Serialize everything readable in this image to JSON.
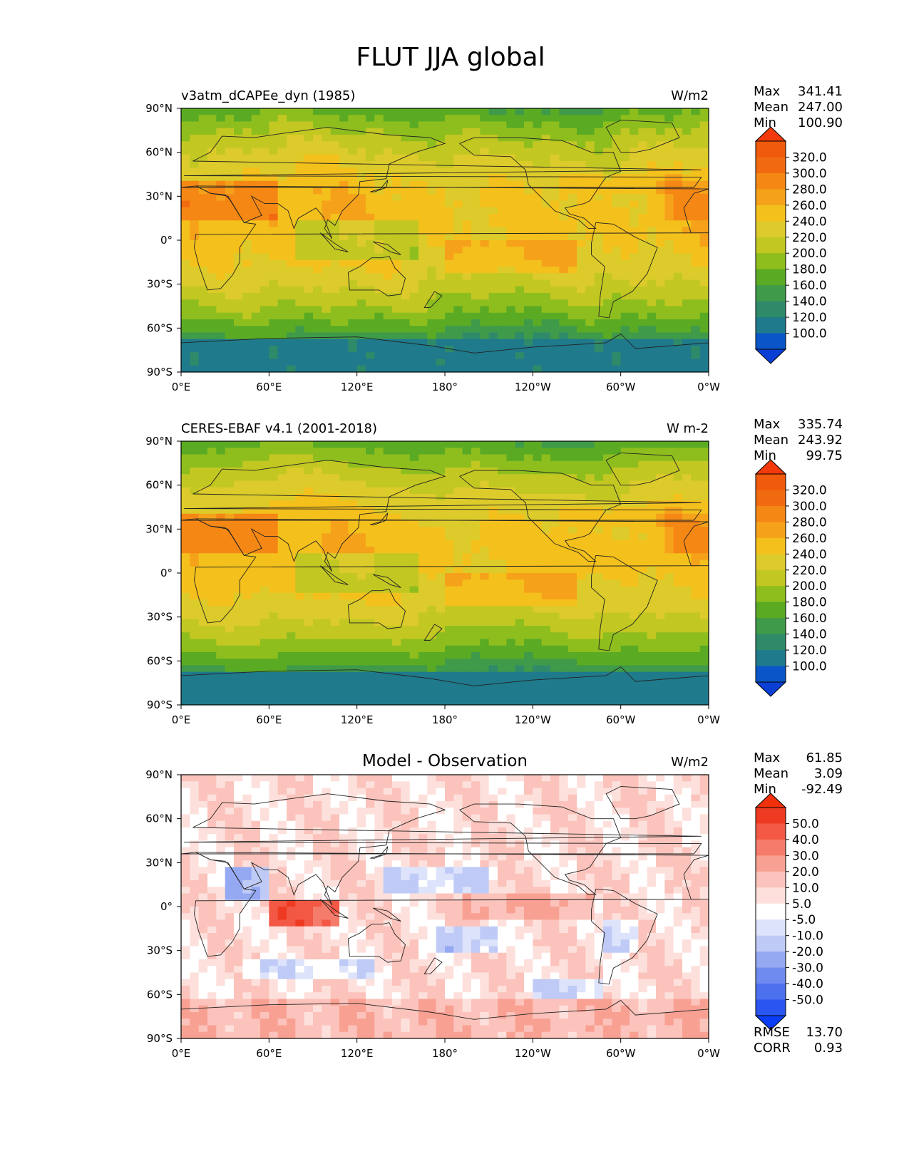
{
  "title": "FLUT JJA global",
  "chart_data": [
    {
      "type": "heatmap",
      "title": "v3atm_dCAPEe_dyn (1985)",
      "units": "W/m2",
      "variant": "model",
      "stats": [
        {
          "label": "Max",
          "value": "341.41"
        },
        {
          "label": "Mean",
          "value": "247.00"
        },
        {
          "label": "Min",
          "value": "100.90"
        }
      ],
      "colorbar": {
        "levels": [
          90,
          100,
          120,
          140,
          160,
          180,
          200,
          220,
          240,
          260,
          280,
          300,
          320,
          350
        ],
        "colors": [
          "#0a56c8",
          "#1f7a8c",
          "#2f8a6a",
          "#3f9a4a",
          "#5aab23",
          "#8ebe1e",
          "#c2c722",
          "#dccb2a",
          "#f4c01c",
          "#f5a21a",
          "#f58714",
          "#f26a10",
          "#ef5a0c"
        ],
        "tick_labels": [
          "100.0",
          "120.0",
          "140.0",
          "160.0",
          "180.0",
          "200.0",
          "220.0",
          "240.0",
          "260.0",
          "280.0",
          "300.0",
          "320.0"
        ],
        "under_color": "#0a3fd6",
        "over_color": "#f23a0c"
      },
      "x_ticks": [
        "0°E",
        "60°E",
        "120°E",
        "180°",
        "120°W",
        "60°W",
        "0°W"
      ],
      "y_ticks": [
        "90°N",
        "60°N",
        "30°N",
        "0°",
        "30°S",
        "60°S",
        "90°S"
      ],
      "xlim": [
        0,
        360
      ],
      "ylim": [
        -90,
        90
      ],
      "value_range": [
        100.9,
        341.41
      ]
    },
    {
      "type": "heatmap",
      "title": "CERES-EBAF v4.1 (2001-2018)",
      "units": "W m-2",
      "variant": "obs",
      "stats": [
        {
          "label": "Max",
          "value": "335.74"
        },
        {
          "label": "Mean",
          "value": "243.92"
        },
        {
          "label": "Min",
          "value": "99.75"
        }
      ],
      "colorbar": {
        "levels": [
          90,
          100,
          120,
          140,
          160,
          180,
          200,
          220,
          240,
          260,
          280,
          300,
          320,
          350
        ],
        "colors": [
          "#0a56c8",
          "#1f7a8c",
          "#2f8a6a",
          "#3f9a4a",
          "#5aab23",
          "#8ebe1e",
          "#c2c722",
          "#dccb2a",
          "#f4c01c",
          "#f5a21a",
          "#f58714",
          "#f26a10",
          "#ef5a0c"
        ],
        "tick_labels": [
          "100.0",
          "120.0",
          "140.0",
          "160.0",
          "180.0",
          "200.0",
          "220.0",
          "240.0",
          "260.0",
          "280.0",
          "300.0",
          "320.0"
        ],
        "under_color": "#0a3fd6",
        "over_color": "#f23a0c"
      },
      "x_ticks": [
        "0°E",
        "60°E",
        "120°E",
        "180°",
        "120°W",
        "60°W",
        "0°W"
      ],
      "y_ticks": [
        "90°N",
        "60°N",
        "30°N",
        "0°",
        "30°S",
        "60°S",
        "90°S"
      ],
      "xlim": [
        0,
        360
      ],
      "ylim": [
        -90,
        90
      ],
      "value_range": [
        99.75,
        335.74
      ]
    },
    {
      "type": "heatmap",
      "title": "Model - Observation",
      "units": "W/m2",
      "variant": "diff",
      "stats": [
        {
          "label": "Max",
          "value": "61.85"
        },
        {
          "label": "Mean",
          "value": "3.09"
        },
        {
          "label": "Min",
          "value": "-92.49"
        }
      ],
      "extra_stats": [
        {
          "label": "RMSE",
          "value": "13.70"
        },
        {
          "label": "CORR",
          "value": "0.93"
        }
      ],
      "colorbar": {
        "levels": [
          -60,
          -50,
          -40,
          -30,
          -20,
          -10,
          -5,
          5,
          10,
          20,
          30,
          40,
          50,
          60
        ],
        "colors": [
          "#2a55f0",
          "#4d70ef",
          "#6f8bef",
          "#95a9f2",
          "#bfcbf6",
          "#dde3fa",
          "#ffffff",
          "#fde0dc",
          "#fbc3bb",
          "#f8a193",
          "#f57c6a",
          "#f25844",
          "#ef3a22"
        ],
        "tick_labels": [
          "-50.0",
          "-40.0",
          "-30.0",
          "-20.0",
          "-10.0",
          "-5.0",
          "5.0",
          "10.0",
          "20.0",
          "30.0",
          "40.0",
          "50.0"
        ],
        "under_color": "#0a3df5",
        "over_color": "#f2300c"
      },
      "x_ticks": [
        "0°E",
        "60°E",
        "120°E",
        "180°",
        "120°W",
        "60°W",
        "0°W"
      ],
      "y_ticks": [
        "90°N",
        "60°N",
        "30°N",
        "0°",
        "30°S",
        "60°S",
        "90°S"
      ],
      "xlim": [
        0,
        360
      ],
      "ylim": [
        -90,
        90
      ],
      "value_range": [
        -92.49,
        61.85
      ]
    }
  ]
}
